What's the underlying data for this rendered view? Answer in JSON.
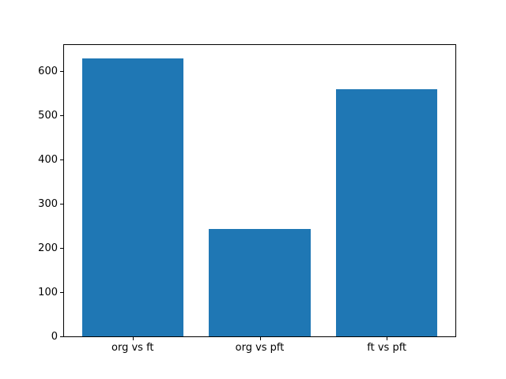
{
  "figure": {
    "background_color": "#ffffff",
    "axis_color": "#000000",
    "tick_label_color": "#000000"
  },
  "chart_data": {
    "type": "bar",
    "categories": [
      "org vs ft",
      "org vs pft",
      "ft vs pft"
    ],
    "values": [
      627,
      243,
      558
    ],
    "title": "",
    "xlabel": "",
    "ylabel": "",
    "bar_color": "#1f77b4",
    "bar_width": 0.8,
    "xlim": [
      -0.54,
      2.54
    ],
    "ylim": [
      0,
      658
    ],
    "yticks": [
      0,
      100,
      200,
      300,
      400,
      500,
      600
    ],
    "grid": false,
    "legend": null
  }
}
